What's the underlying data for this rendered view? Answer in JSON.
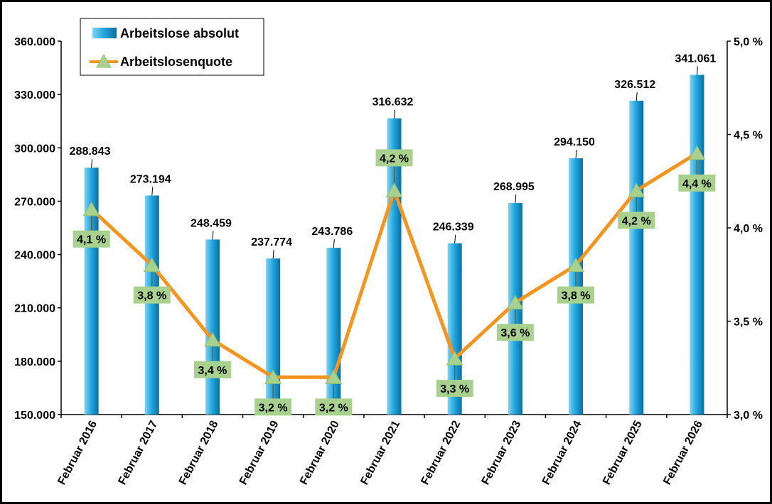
{
  "chart_data": {
    "type": "bar+line",
    "categories": [
      "Februar 2016",
      "Februar 2017",
      "Februar 2018",
      "Februar 2019",
      "Februar 2020",
      "Februar 2021",
      "Februar 2022",
      "Februar 2023",
      "Februar 2024",
      "Februar 2025",
      "Februar 2026"
    ],
    "series": [
      {
        "name": "Arbeitslose absolut",
        "type": "bar",
        "axis": "left",
        "values": [
          288843,
          273194,
          248459,
          237774,
          243786,
          316632,
          246339,
          268995,
          294150,
          326512,
          341061
        ],
        "labels": [
          "288.843",
          "273.194",
          "248.459",
          "237.774",
          "243.786",
          "316.632",
          "246.339",
          "268.995",
          "294.150",
          "326.512",
          "341.061"
        ],
        "color": "#1fa0d8"
      },
      {
        "name": "Arbeitslosenquote",
        "type": "line",
        "axis": "right",
        "values": [
          4.1,
          3.8,
          3.4,
          3.2,
          3.2,
          4.2,
          3.3,
          3.6,
          3.8,
          4.2,
          4.4
        ],
        "labels": [
          "4,1 %",
          "3,8 %",
          "3,4 %",
          "3,2 %",
          "3,2 %",
          "4,2 %",
          "3,3 %",
          "3,6 %",
          "3,8 %",
          "4,2 %",
          "4,4 %"
        ],
        "color": "#f7941d",
        "marker_color": "#a9d18e"
      }
    ],
    "left_axis": {
      "min": 150000,
      "max": 360000,
      "step": 30000,
      "tick_labels": [
        "150.000",
        "180.000",
        "210.000",
        "240.000",
        "270.000",
        "300.000",
        "330.000",
        "360.000"
      ]
    },
    "right_axis": {
      "min": 3.0,
      "max": 5.0,
      "step": 0.5,
      "tick_labels": [
        "3,0 %",
        "3,5 %",
        "4,0 %",
        "4,5 %",
        "5,0 %"
      ]
    },
    "grid": false,
    "legend": "top-left"
  }
}
